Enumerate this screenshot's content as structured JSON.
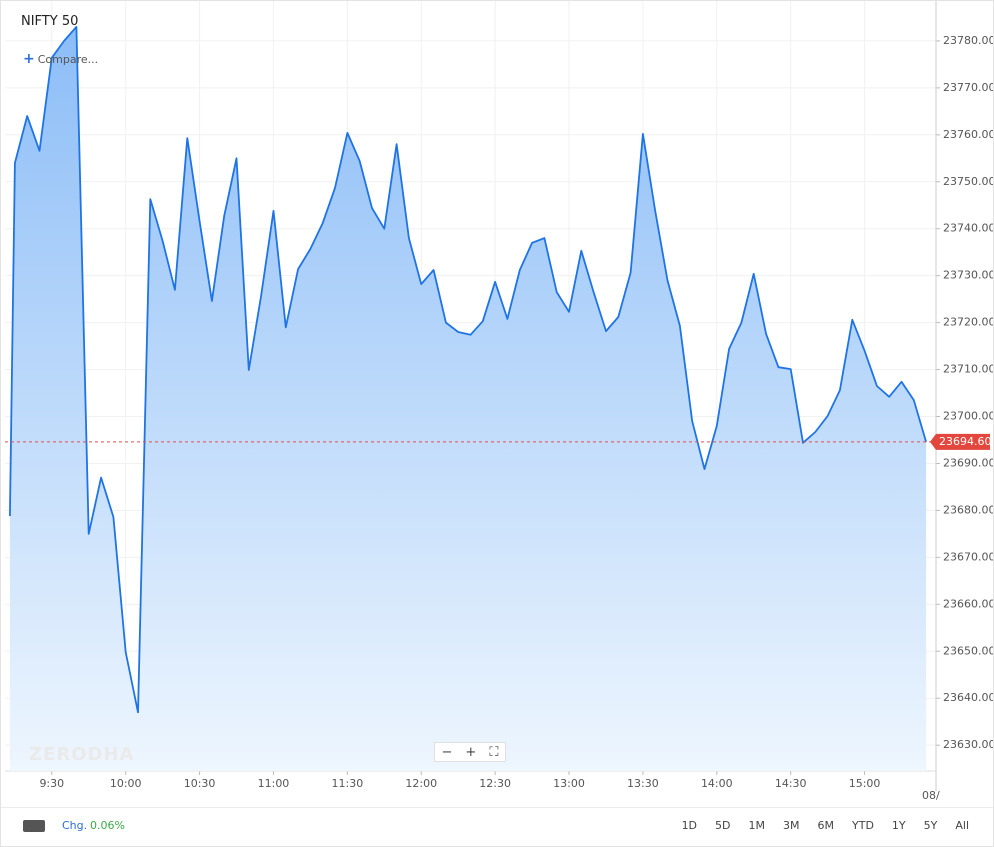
{
  "header": {
    "title": "NIFTY 50",
    "compare": "Compare...",
    "watermark": "ZERODHA"
  },
  "footer": {
    "change_label": "Chg.",
    "change": "0.06%",
    "ranges": [
      "1D",
      "5D",
      "1M",
      "3M",
      "6M",
      "YTD",
      "1Y",
      "5Y",
      "All"
    ],
    "date_fragment": "08/"
  },
  "chart_data": {
    "type": "area",
    "color": "#1f74e5",
    "grid": true,
    "x": [
      "09:13",
      "09:15",
      "09:20",
      "09:25",
      "09:30",
      "09:35",
      "09:40",
      "09:45",
      "09:50",
      "09:55",
      "10:00",
      "10:05",
      "10:10",
      "10:15",
      "10:20",
      "10:25",
      "10:30",
      "10:35",
      "10:40",
      "10:45",
      "10:50",
      "10:55",
      "11:00",
      "11:05",
      "11:10",
      "11:15",
      "11:20",
      "11:25",
      "11:30",
      "11:35",
      "11:40",
      "11:45",
      "11:50",
      "11:55",
      "12:00",
      "12:05",
      "12:10",
      "12:15",
      "12:20",
      "12:25",
      "12:30",
      "12:35",
      "12:40",
      "12:45",
      "12:50",
      "12:55",
      "13:00",
      "13:05",
      "13:10",
      "13:15",
      "13:20",
      "13:25",
      "13:30",
      "13:35",
      "13:40",
      "13:45",
      "13:50",
      "13:55",
      "14:00",
      "14:05",
      "14:10",
      "14:15",
      "14:20",
      "14:25",
      "14:30",
      "14:35",
      "14:40",
      "14:45",
      "14:50",
      "14:55",
      "15:00",
      "15:05",
      "15:10",
      "15:15",
      "15:20",
      "15:25"
    ],
    "values": [
      23678.8,
      23754,
      23764,
      23756.6,
      23776.4,
      23780,
      23783,
      23675,
      23687,
      23678.6,
      23649.8,
      23637,
      23746.3,
      23737.4,
      23727,
      23759.3,
      23741.6,
      23724.6,
      23742.7,
      23755,
      23709.9,
      23725.7,
      23743.8,
      23719,
      23731.4,
      23735.7,
      23741.2,
      23748.7,
      23760.4,
      23754.4,
      23744.4,
      23740,
      23758,
      23738,
      23728.2,
      23731.2,
      23720,
      23718,
      23717.4,
      23720.3,
      23728.7,
      23720.8,
      23731.2,
      23737,
      23738,
      23726.5,
      23722.3,
      23735.3,
      23726.5,
      23718.2,
      23721.2,
      23730.6,
      23760.2,
      23743.8,
      23729,
      23719.3,
      23699,
      23688.8,
      23698,
      23714.4,
      23720,
      23730.4,
      23717.6,
      23710.5,
      23710.1,
      23694.4,
      23696.7,
      23700.1,
      23705.6,
      23720.6,
      23714,
      23706.5,
      23704.2,
      23707.4,
      23703.5,
      23694.6
    ],
    "last_price": {
      "value": 23694.6,
      "label": "23694.60"
    },
    "xlim": [
      "09:11",
      "15:29"
    ],
    "xticks": [
      {
        "value": "09:30",
        "label": "9:30"
      },
      {
        "value": "10:00",
        "label": "10:00"
      },
      {
        "value": "10:30",
        "label": "10:30"
      },
      {
        "value": "11:00",
        "label": "11:00"
      },
      {
        "value": "11:30",
        "label": "11:30"
      },
      {
        "value": "12:00",
        "label": "12:00"
      },
      {
        "value": "12:30",
        "label": "12:30"
      },
      {
        "value": "13:00",
        "label": "13:00"
      },
      {
        "value": "13:30",
        "label": "13:30"
      },
      {
        "value": "14:00",
        "label": "14:00"
      },
      {
        "value": "14:30",
        "label": "14:30"
      },
      {
        "value": "15:00",
        "label": "15:00"
      }
    ],
    "ylim": [
      23624.5,
      23788.5
    ],
    "yticks": [
      {
        "value": 23630,
        "label": "23630.00"
      },
      {
        "value": 23640,
        "label": "23640.00"
      },
      {
        "value": 23650,
        "label": "23650.00"
      },
      {
        "value": 23660,
        "label": "23660.00"
      },
      {
        "value": 23670,
        "label": "23670.00"
      },
      {
        "value": 23680,
        "label": "23680.00"
      },
      {
        "value": 23690,
        "label": "23690.00"
      },
      {
        "value": 23700,
        "label": "23700.00"
      },
      {
        "value": 23710,
        "label": "23710.00"
      },
      {
        "value": 23720,
        "label": "23720.00"
      },
      {
        "value": 23730,
        "label": "23730.00"
      },
      {
        "value": 23740,
        "label": "23740.00"
      },
      {
        "value": 23750,
        "label": "23750.00"
      },
      {
        "value": 23760,
        "label": "23760.00"
      },
      {
        "value": 23770,
        "label": "23770.00"
      },
      {
        "value": 23780,
        "label": "23780.00"
      }
    ]
  }
}
